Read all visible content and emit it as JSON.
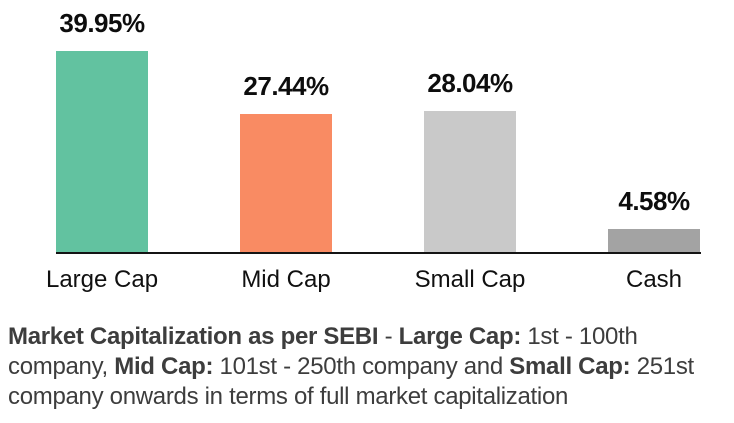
{
  "chart_data": {
    "type": "bar",
    "title": "",
    "xlabel": "",
    "ylabel": "",
    "categories": [
      "Large Cap",
      "Mid Cap",
      "Small Cap",
      "Cash"
    ],
    "values": [
      39.95,
      27.44,
      28.04,
      4.58
    ],
    "value_labels": [
      "39.95%",
      "27.44%",
      "28.04%",
      "4.58%"
    ],
    "bar_colors": [
      "#62c2a0",
      "#f98b63",
      "#c9c9c9",
      "#a3a3a3"
    ],
    "axis_color": "#141414",
    "value_label_color": "#0d0d0d",
    "ylim": [
      0,
      45
    ],
    "grid": false,
    "legend": false
  },
  "caption": {
    "text_color": "#3d3d3d",
    "lines": [
      {
        "segments": [
          {
            "text": "Market Capitalization as per SEBI",
            "bold": true
          },
          {
            "text": " - ",
            "bold": false
          },
          {
            "text": "Large Cap:",
            "bold": true
          },
          {
            "text": " 1st - 100th",
            "bold": false
          }
        ]
      },
      {
        "segments": [
          {
            "text": "company, ",
            "bold": false
          },
          {
            "text": "Mid Cap:",
            "bold": true
          },
          {
            "text": " 101st - 250th company and ",
            "bold": false
          },
          {
            "text": "Small Cap:",
            "bold": true
          },
          {
            "text": " 251st",
            "bold": false
          }
        ]
      },
      {
        "segments": [
          {
            "text": "company onwards in terms of full market capitalization",
            "bold": false
          }
        ]
      }
    ]
  }
}
